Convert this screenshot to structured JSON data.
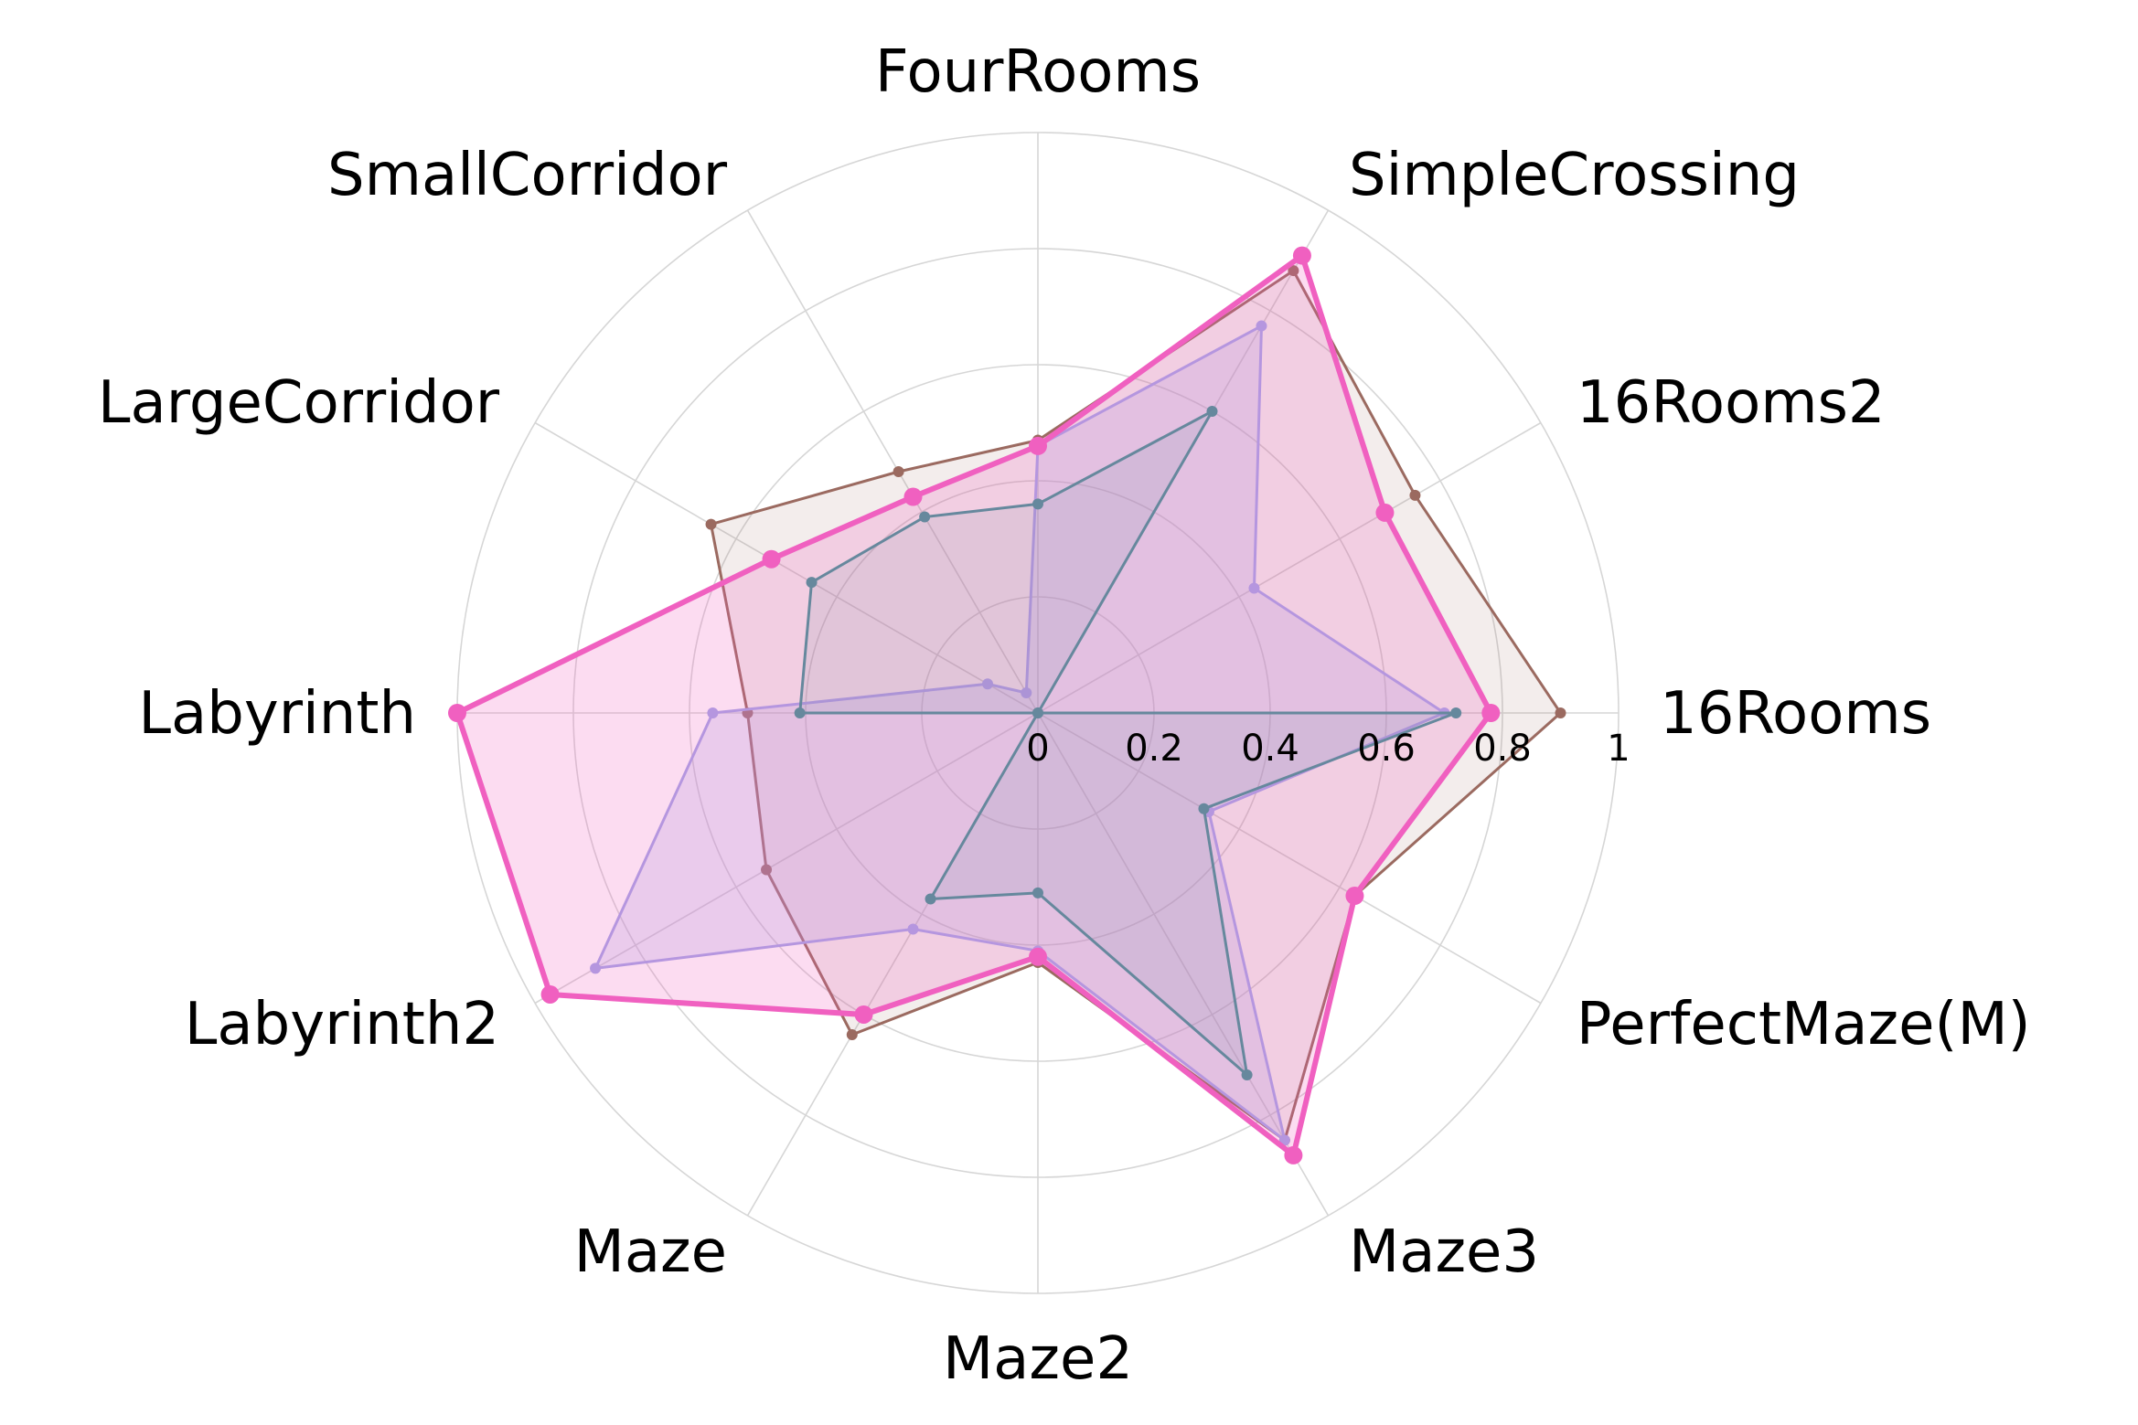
{
  "chart_data": {
    "type": "radar",
    "title": "",
    "categories": [
      "16Rooms",
      "16Rooms2",
      "SimpleCrossing",
      "FourRooms",
      "SmallCorridor",
      "LargeCorridor",
      "Labyrinth",
      "Labyrinth2",
      "Maze",
      "Maze2",
      "Maze3",
      "PerfectMaze(M)"
    ],
    "rticks": [
      "0",
      "0.2",
      "0.4",
      "0.6",
      "0.8",
      "1"
    ],
    "rlim": [
      0,
      1
    ],
    "grid": true,
    "series": [
      {
        "color": "#9b6a60",
        "fill": "#9b6a60",
        "fill_opacity": 0.12,
        "stroke_width": 3,
        "marker_r": 6,
        "values": [
          0.9,
          0.75,
          0.88,
          0.47,
          0.48,
          0.65,
          0.5,
          0.54,
          0.64,
          0.43,
          0.85,
          0.63
        ]
      },
      {
        "color": "#a5a6e8",
        "fill": "#a5a6e8",
        "fill_opacity": 0.25,
        "stroke_width": 3,
        "marker_r": 6,
        "values": [
          0.7,
          0.43,
          0.77,
          0.46,
          0.04,
          0.1,
          0.56,
          0.88,
          0.43,
          0.41,
          0.85,
          0.34
        ]
      },
      {
        "color": "#3f9494",
        "fill": "#3f9494",
        "fill_opacity": 0.12,
        "stroke_width": 3,
        "marker_r": 6,
        "values": [
          0.72,
          0.0,
          0.6,
          0.36,
          0.39,
          0.45,
          0.41,
          0.0,
          0.37,
          0.31,
          0.72,
          0.33
        ]
      },
      {
        "color": "#f060c0",
        "fill": "#f060c0",
        "fill_opacity": 0.22,
        "stroke_width": 6,
        "marker_r": 10,
        "values": [
          0.78,
          0.69,
          0.91,
          0.46,
          0.43,
          0.53,
          1.0,
          0.97,
          0.6,
          0.42,
          0.88,
          0.63
        ]
      }
    ]
  }
}
